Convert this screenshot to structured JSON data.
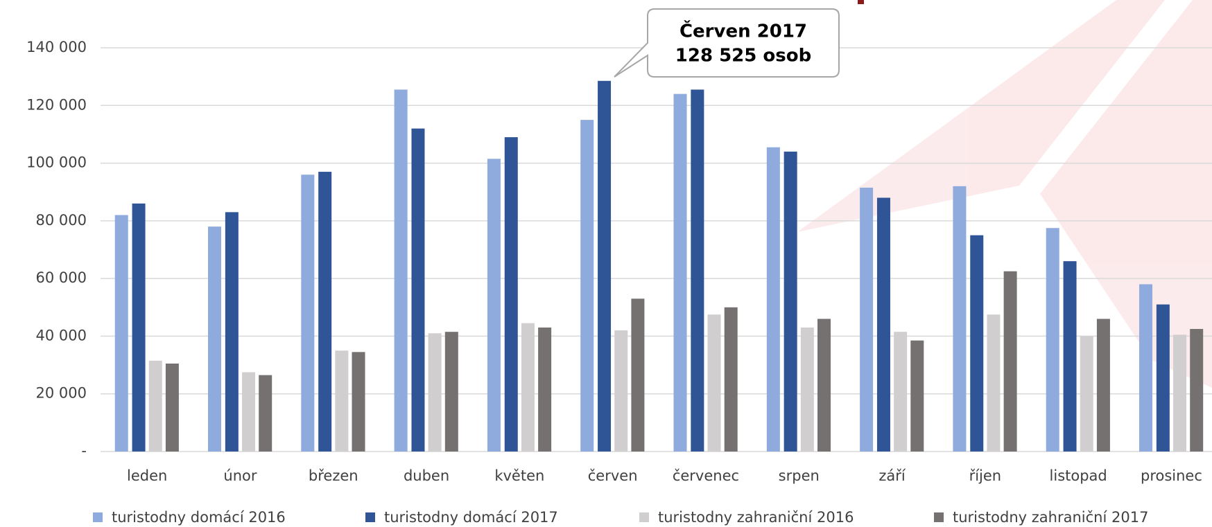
{
  "chart_data": {
    "type": "bar",
    "annotations": [
      "Červen 2017",
      "128 525 osob"
    ],
    "categories": [
      "leden",
      "únor",
      "březen",
      "duben",
      "květen",
      "červen",
      "červenec",
      "srpen",
      "září",
      "říjen",
      "listopad",
      "prosinec"
    ],
    "series": [
      {
        "name": "turistodny domácí 2016",
        "color": "#8faadc",
        "values": [
          82000,
          78000,
          96000,
          125500,
          101500,
          115000,
          124000,
          105500,
          91500,
          92000,
          77500,
          58000
        ]
      },
      {
        "name": "turistodny domácí 2017",
        "color": "#2f5597",
        "values": [
          86000,
          83000,
          97000,
          112000,
          109000,
          128525,
          125500,
          104000,
          88000,
          75000,
          66000,
          51000
        ]
      },
      {
        "name": "turistodny zahraniční 2016",
        "color": "#d0cece",
        "values": [
          31500,
          27500,
          35000,
          41000,
          44500,
          42000,
          47500,
          43000,
          41500,
          47500,
          40000,
          40500
        ]
      },
      {
        "name": "turistodny zahraniční 2017",
        "color": "#767171",
        "values": [
          30500,
          26500,
          34500,
          41500,
          43000,
          53000,
          50000,
          46000,
          38500,
          62500,
          46000,
          42500
        ]
      }
    ],
    "ylim": [
      0,
      140000
    ],
    "yticks": [
      {
        "value": 0,
        "label": "-"
      },
      {
        "value": 20000,
        "label": "20 000"
      },
      {
        "value": 40000,
        "label": "40 000"
      },
      {
        "value": 60000,
        "label": "60 000"
      },
      {
        "value": 80000,
        "label": "80 000"
      },
      {
        "value": 100000,
        "label": "100 000"
      },
      {
        "value": 120000,
        "label": "120 000"
      },
      {
        "value": 140000,
        "label": "140 000"
      }
    ],
    "grid": true
  }
}
